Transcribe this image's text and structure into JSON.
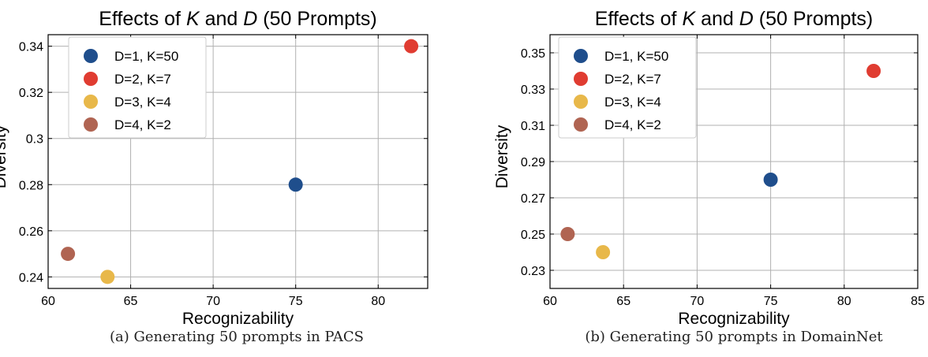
{
  "chart_data": [
    {
      "type": "scatter",
      "title_parts": [
        "Effects of ",
        "K",
        " and ",
        "D",
        " (50 Prompts)"
      ],
      "xlabel": "Recognizability",
      "ylabel": "Diversity",
      "xlim": [
        60,
        83
      ],
      "ylim": [
        0.235,
        0.345
      ],
      "xticks": [
        60,
        65,
        70,
        75,
        80
      ],
      "xtick_labels": [
        "60",
        "65",
        "70",
        "75",
        "80"
      ],
      "yticks": [
        0.24,
        0.26,
        0.28,
        0.3,
        0.32,
        0.34
      ],
      "ytick_labels": [
        "0.24",
        "0.26",
        "0.28",
        "0.3",
        "0.32",
        "0.34"
      ],
      "grid": true,
      "legend_position": "top-left",
      "series": [
        {
          "name": "D=1, K=50",
          "color": "#1f4e8c",
          "x": [
            75.0
          ],
          "y": [
            0.28
          ]
        },
        {
          "name": "D=2, K=7",
          "color": "#e03c31",
          "x": [
            82.0
          ],
          "y": [
            0.34
          ]
        },
        {
          "name": "D=3, K=4",
          "color": "#e8b84a",
          "x": [
            63.6
          ],
          "y": [
            0.24
          ]
        },
        {
          "name": "D=4, K=2",
          "color": "#b06452",
          "x": [
            61.2
          ],
          "y": [
            0.25
          ]
        }
      ],
      "caption": "(a) Generating 50 prompts in PACS"
    },
    {
      "type": "scatter",
      "title_parts": [
        "Effects of ",
        "K",
        " and ",
        "D",
        " (50 Prompts)"
      ],
      "xlabel": "Recognizability",
      "ylabel": "Diversity",
      "xlim": [
        60,
        85
      ],
      "ylim": [
        0.22,
        0.36
      ],
      "xticks": [
        60,
        65,
        70,
        75,
        80,
        85
      ],
      "xtick_labels": [
        "60",
        "65",
        "70",
        "75",
        "80",
        "85"
      ],
      "yticks": [
        0.23,
        0.25,
        0.27,
        0.29,
        0.31,
        0.33,
        0.35
      ],
      "ytick_labels": [
        "0.23",
        "0.25",
        "0.27",
        "0.29",
        "0.31",
        "0.33",
        "0.35"
      ],
      "grid": true,
      "legend_position": "top-left",
      "series": [
        {
          "name": "D=1, K=50",
          "color": "#1f4e8c",
          "x": [
            75.0
          ],
          "y": [
            0.28
          ]
        },
        {
          "name": "D=2, K=7",
          "color": "#e03c31",
          "x": [
            82.0
          ],
          "y": [
            0.34
          ]
        },
        {
          "name": "D=3, K=4",
          "color": "#e8b84a",
          "x": [
            63.6
          ],
          "y": [
            0.24
          ]
        },
        {
          "name": "D=4, K=2",
          "color": "#b06452",
          "x": [
            61.2
          ],
          "y": [
            0.25
          ]
        }
      ],
      "caption": "(b) Generating 50 prompts in DomainNet"
    }
  ]
}
